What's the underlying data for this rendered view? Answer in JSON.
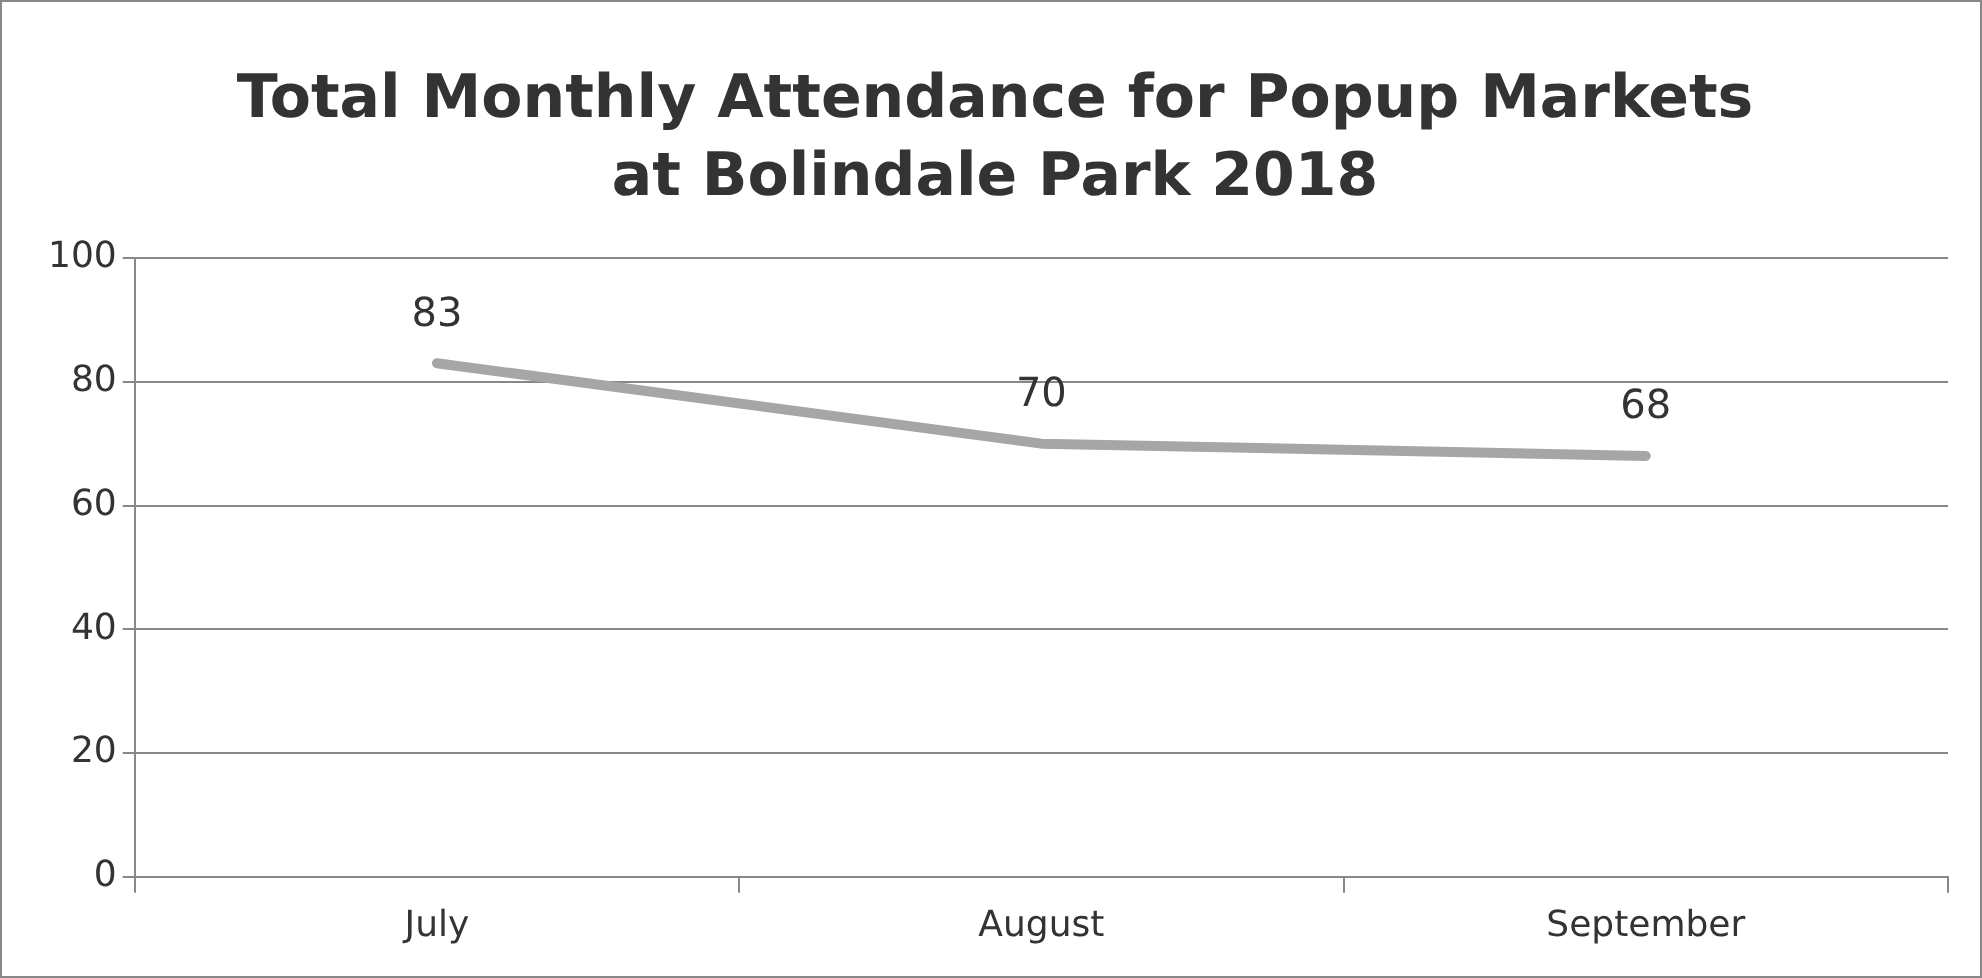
{
  "chart_data": {
    "type": "line",
    "title": "Total Monthly Attendance for Popup Markets\nat Bolindale Park 2018",
    "categories": [
      "July",
      "August",
      "September"
    ],
    "series": [
      {
        "color": "#a6a6a6",
        "values": [
          83,
          70,
          68
        ]
      }
    ],
    "ylim": [
      0,
      100
    ],
    "yticks": [
      0,
      20,
      40,
      60,
      80,
      100
    ],
    "grid": "y",
    "legend": false,
    "marker": "none",
    "line_style": "solid",
    "data_labels": true
  }
}
